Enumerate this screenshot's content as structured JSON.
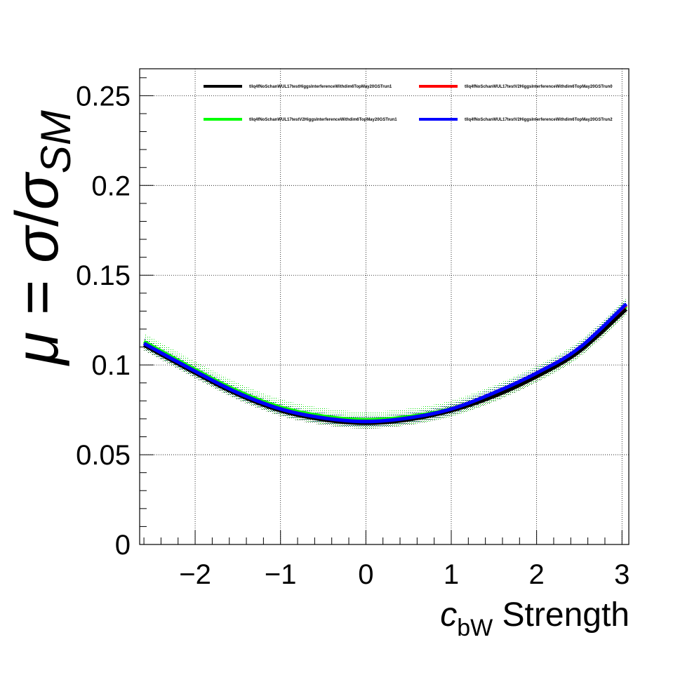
{
  "chart_data": {
    "type": "line",
    "title": "",
    "xlabel": {
      "main": "c",
      "sub": "bW",
      "rest": " Strength"
    },
    "ylabel": {
      "mu": "μ",
      "equals": " = ",
      "sigma": "σ",
      "slash": "/",
      "sigma2": "σ",
      "sub": "SM"
    },
    "xlim": [
      -2.65,
      3.08
    ],
    "ylim": [
      0,
      0.265
    ],
    "x_ticks": [
      -2,
      -1,
      0,
      1,
      2,
      3
    ],
    "x_tick_labels": [
      "−2",
      "−1",
      "0",
      "1",
      "2",
      "3"
    ],
    "y_ticks": [
      0,
      0.05,
      0.1,
      0.15,
      0.2,
      0.25
    ],
    "y_tick_labels": [
      "0",
      "0.05",
      "0.1",
      "0.15",
      "0.2",
      "0.25"
    ],
    "grid": true,
    "legend_placement": "top",
    "x": [
      -2.6,
      -2.0,
      -1.5,
      -1.0,
      -0.5,
      0.0,
      0.5,
      1.0,
      1.5,
      2.0,
      2.5,
      3.05
    ],
    "series": [
      {
        "name": "tllq4fNoSchanWUL17testHiggsInterferenceWithdim6TopMay20GSTrun1",
        "color": "#000000",
        "band_color": "#003300",
        "values": [
          0.111,
          0.0955,
          0.0835,
          0.0745,
          0.0695,
          0.0675,
          0.0695,
          0.0745,
          0.0825,
          0.0935,
          0.1075,
          0.131
        ]
      },
      {
        "name": "tllq4fNoSchanWUL17testV2HiggsInterferenceWithdim6TopMay20GSTrun0",
        "color": "#ff0000",
        "band_color": "#ff0000",
        "values": [
          0.112,
          0.0965,
          0.0845,
          0.0755,
          0.0705,
          0.0685,
          0.0705,
          0.0755,
          0.0845,
          0.0955,
          0.1095,
          0.1335
        ]
      },
      {
        "name": "tllq4fNoSchanWUL17testV2HiggsInterferenceWithdim6TopMay20GSTrun1",
        "color": "#00ff00",
        "band_color": "#00cc00",
        "values": [
          0.113,
          0.0975,
          0.0855,
          0.0765,
          0.0715,
          0.0695,
          0.0712,
          0.0757,
          0.0842,
          0.095,
          0.1088,
          0.1325
        ]
      },
      {
        "name": "tllq4fNoSchanWUL17testV2HiggsInterferenceWithdim6TopMay20GSTrun2",
        "color": "#0000ff",
        "band_color": "#0000aa",
        "values": [
          0.112,
          0.0965,
          0.0845,
          0.0755,
          0.0705,
          0.0685,
          0.0705,
          0.0755,
          0.0845,
          0.0955,
          0.1095,
          0.134
        ]
      }
    ]
  }
}
